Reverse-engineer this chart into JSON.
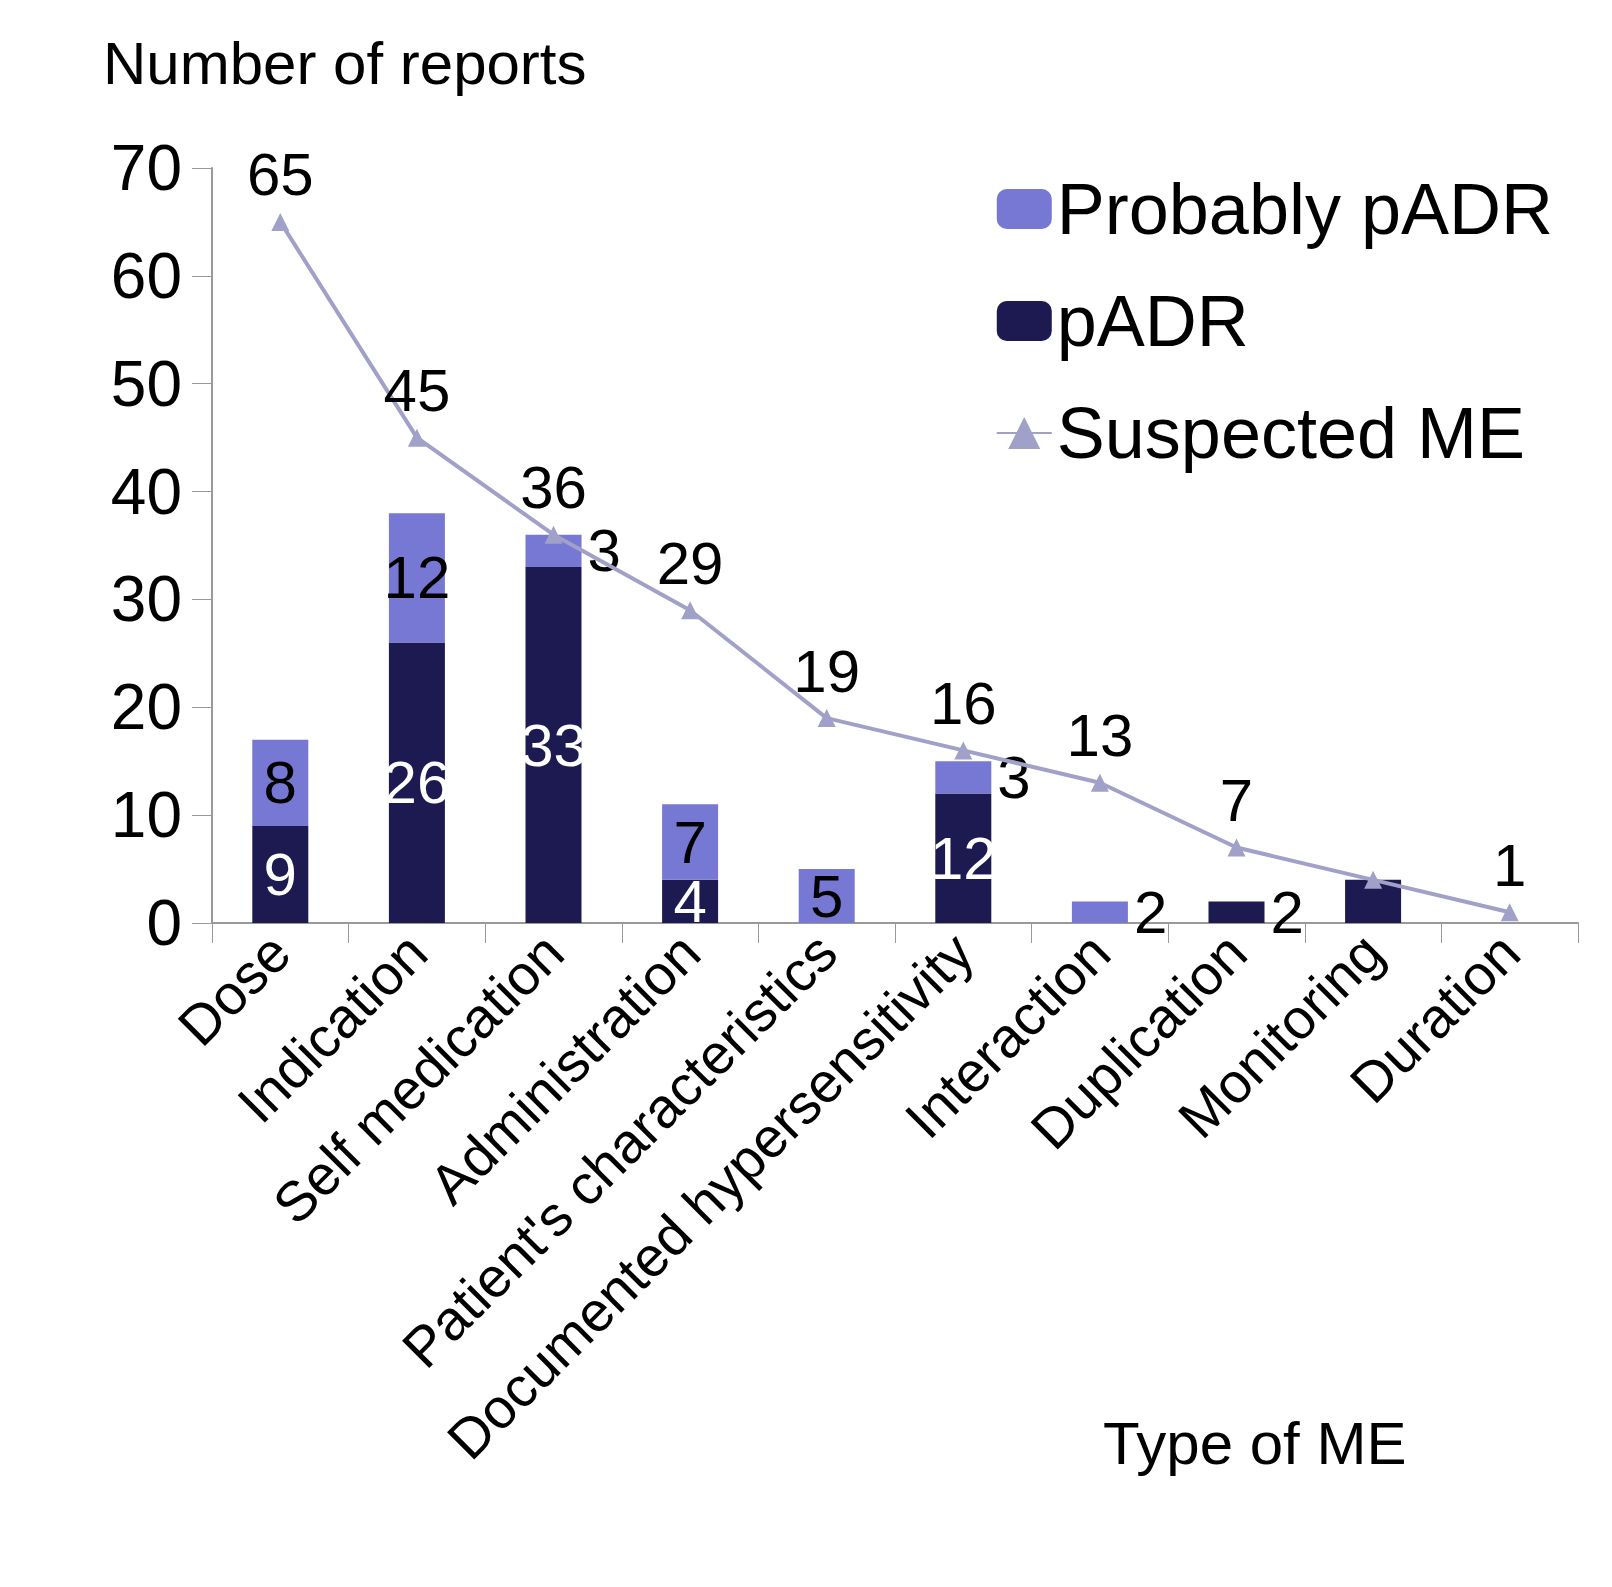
{
  "chart_data": {
    "type": "bar",
    "stacked": true,
    "xlabel": "Type of ME",
    "ylabel": "Number of reports",
    "categories": [
      "Dose",
      "Indication",
      "Self medication",
      "Administration",
      "Patient's characteristics",
      "Documented hypersensitivity",
      "Interaction",
      "Duplication",
      "Monitoring",
      "Duration"
    ],
    "series": [
      {
        "name": "pADR",
        "color": "#1c1a50",
        "values": [
          9,
          26,
          33,
          4,
          0,
          12,
          0,
          2,
          4,
          0
        ],
        "value_labels": [
          "9",
          "26",
          "33",
          "4",
          null,
          "12",
          null,
          "2",
          null,
          null
        ]
      },
      {
        "name": "Probably pADR",
        "color": "#7777d4",
        "values": [
          8,
          12,
          3,
          7,
          5,
          3,
          2,
          0,
          0,
          0
        ],
        "value_labels": [
          "8",
          "12",
          "3",
          "7",
          "5",
          "3",
          "2",
          null,
          null,
          null
        ]
      },
      {
        "name": "Suspected ME",
        "type": "line",
        "color": "#a0a0c8",
        "marker": "triangle",
        "values": [
          65,
          45,
          36,
          29,
          19,
          16,
          13,
          7,
          4,
          1
        ],
        "value_labels": [
          "65",
          "45",
          "36",
          "29",
          "19",
          "16",
          "13",
          "7",
          null,
          "1"
        ]
      }
    ],
    "ylim": [
      0,
      70
    ],
    "yticks": [
      0,
      10,
      20,
      30,
      40,
      50,
      60,
      70
    ],
    "grid": false,
    "legend": "top right"
  }
}
